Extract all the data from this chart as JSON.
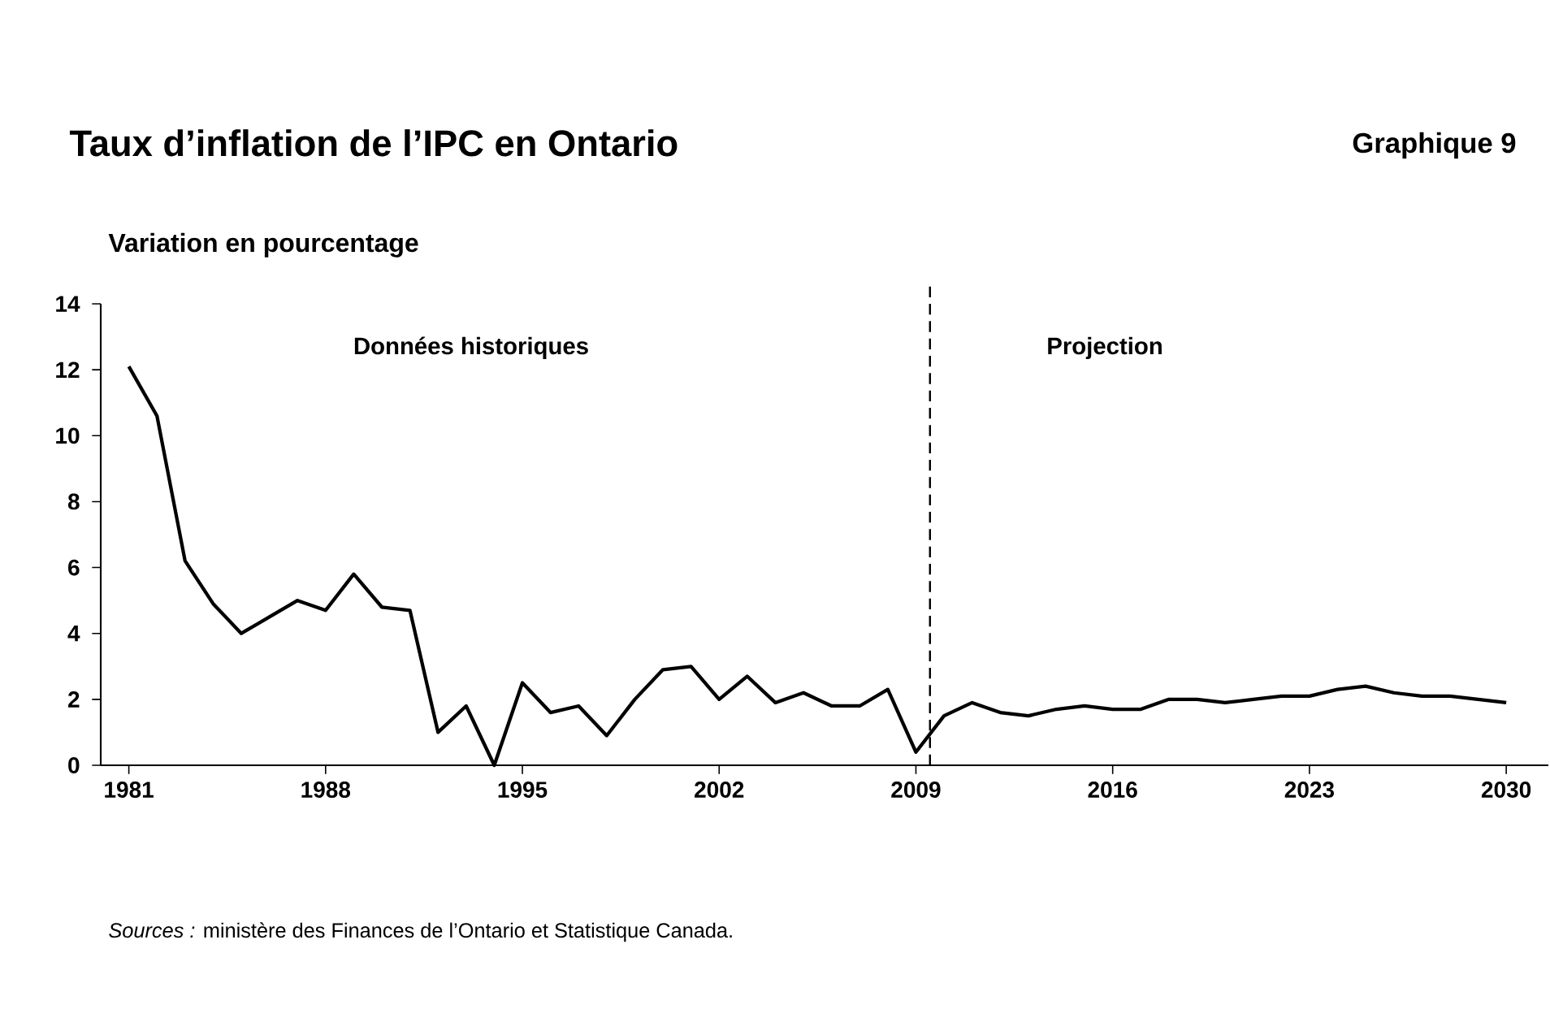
{
  "chart_data": {
    "type": "line",
    "title": "Taux d’inflation de l’IPC en Ontario",
    "subtitle": "Graphique 9",
    "ylabel": "Variation en pourcentage",
    "x": [
      1981,
      1982,
      1983,
      1984,
      1985,
      1986,
      1987,
      1988,
      1989,
      1990,
      1991,
      1992,
      1993,
      1994,
      1995,
      1996,
      1997,
      1998,
      1999,
      2000,
      2001,
      2002,
      2003,
      2004,
      2005,
      2006,
      2007,
      2008,
      2009,
      2010,
      2011,
      2012,
      2013,
      2014,
      2015,
      2016,
      2017,
      2018,
      2019,
      2020,
      2021,
      2022,
      2023,
      2024,
      2025,
      2026,
      2027,
      2028,
      2029,
      2030
    ],
    "series": [
      {
        "color": "#000000",
        "values": [
          12.1,
          10.6,
          6.2,
          4.9,
          4.0,
          4.5,
          5.0,
          4.7,
          5.8,
          4.8,
          4.7,
          1.0,
          1.8,
          0.0,
          2.5,
          1.6,
          1.8,
          0.9,
          2.0,
          2.9,
          3.0,
          2.0,
          2.7,
          1.9,
          2.2,
          1.8,
          1.8,
          2.3,
          0.4,
          1.5,
          1.9,
          1.6,
          1.5,
          1.7,
          1.8,
          1.7,
          1.7,
          2.0,
          2.0,
          1.9,
          2.0,
          2.1,
          2.1,
          2.3,
          2.4,
          2.2,
          2.1,
          2.1,
          2.0,
          1.9
        ]
      }
    ],
    "xlim": [
      1980,
      2031.5
    ],
    "xticks": [
      1981,
      1988,
      1995,
      2002,
      2009,
      2016,
      2023,
      2030
    ],
    "ylim": [
      0,
      14
    ],
    "yticks": [
      0,
      2,
      4,
      6,
      8,
      10,
      12,
      14
    ],
    "ref_lines": [
      {
        "axis": "x",
        "value": 2009.5,
        "line_style": "dashed",
        "color": "#000000"
      }
    ],
    "annotations": [
      "Données historiques",
      "Projection",
      "*Sources :* ministère des Finances de l’Ontario et Statistique Canada."
    ],
    "grid": false,
    "marker": "none",
    "line_style": "solid"
  }
}
